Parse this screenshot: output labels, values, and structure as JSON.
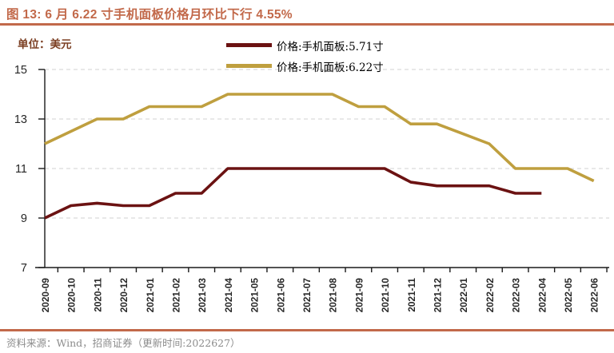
{
  "title": "图 13: 6 月 6.22 寸手机面板价格月环比下行 4.55%",
  "unit_label": "单位：美元",
  "source": "资料来源：Wind，招商证券（更新时间:2022627）",
  "colors": {
    "accent": "#C2694A",
    "unit_text": "#7B3E22",
    "source_text": "#8C8C8C",
    "grid": "#D9D9D9",
    "axis": "#1A1A1A",
    "tick_label": "#262626",
    "series_571": "#6B1212",
    "series_622": "#BF9F3F"
  },
  "chart_data": {
    "type": "line",
    "title": "图 13: 6 月 6.22 寸手机面板价格月环比下行 4.55%",
    "ylabel": "单位：美元",
    "x": [
      "2020-09",
      "2020-10",
      "2020-11",
      "2020-12",
      "2021-01",
      "2021-02",
      "2021-03",
      "2021-04",
      "2021-05",
      "2021-06",
      "2021-07",
      "2021-08",
      "2021-09",
      "2021-10",
      "2021-11",
      "2021-12",
      "2022-01",
      "2022-02",
      "2022-03",
      "2022-04",
      "2022-05",
      "2022-06"
    ],
    "series": [
      {
        "name": "价格:手机面板:5.71寸",
        "color_key": "series_571",
        "values": [
          9.0,
          9.5,
          9.6,
          9.5,
          9.5,
          10.0,
          10.0,
          11.0,
          11.0,
          11.0,
          11.0,
          11.0,
          11.0,
          11.0,
          10.45,
          10.3,
          10.3,
          10.3,
          10.0,
          10.0,
          null,
          null
        ]
      },
      {
        "name": "价格:手机面板:6.22寸",
        "color_key": "series_622",
        "values": [
          12.0,
          12.5,
          13.0,
          13.0,
          13.5,
          13.5,
          13.5,
          14.0,
          14.0,
          14.0,
          14.0,
          14.0,
          13.5,
          13.5,
          12.8,
          12.8,
          12.4,
          12.0,
          11.0,
          11.0,
          11.0,
          10.5
        ]
      }
    ],
    "ylim": [
      7,
      15
    ],
    "yticks": [
      7,
      9,
      11,
      13,
      15
    ],
    "grid": "horizontal-dashed",
    "legend_position": "top-center"
  }
}
